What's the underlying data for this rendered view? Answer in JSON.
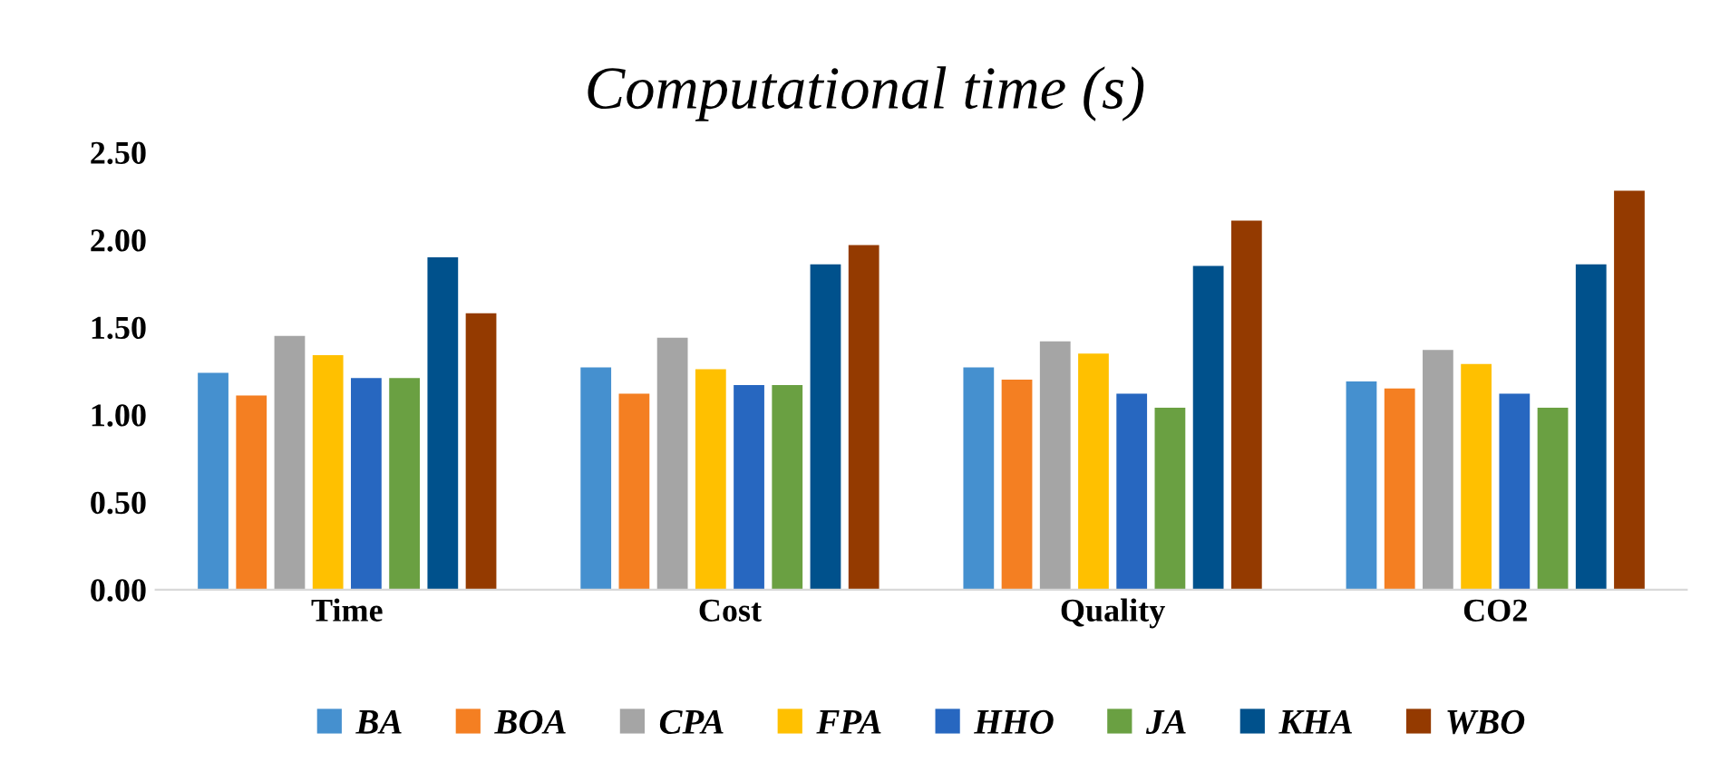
{
  "chart_data": {
    "type": "bar",
    "title": "Computational time (s)",
    "categories": [
      "Time",
      "Cost",
      "Quality",
      "CO2"
    ],
    "series": [
      {
        "name": "BA",
        "color": "#4590cf",
        "values": [
          1.24,
          1.27,
          1.27,
          1.19
        ]
      },
      {
        "name": "BOA",
        "color": "#f47f22",
        "values": [
          1.11,
          1.12,
          1.2,
          1.15
        ]
      },
      {
        "name": "CPA",
        "color": "#a5a5a5",
        "values": [
          1.45,
          1.44,
          1.42,
          1.37
        ]
      },
      {
        "name": "FPA",
        "color": "#ffc000",
        "values": [
          1.34,
          1.26,
          1.35,
          1.29
        ]
      },
      {
        "name": "HHO",
        "color": "#2767c0",
        "values": [
          1.21,
          1.17,
          1.12,
          1.12
        ]
      },
      {
        "name": "JA",
        "color": "#6aa042",
        "values": [
          1.21,
          1.17,
          1.04,
          1.04
        ]
      },
      {
        "name": "KHA",
        "color": "#00518c",
        "values": [
          1.9,
          1.86,
          1.85,
          1.86
        ]
      },
      {
        "name": "WBO",
        "color": "#943a00",
        "values": [
          1.58,
          1.97,
          2.11,
          2.28
        ]
      }
    ],
    "ylim": [
      0,
      2.5
    ],
    "yticks": [
      {
        "value": 0,
        "label": "0.00"
      },
      {
        "value": 0.5,
        "label": "0.50"
      },
      {
        "value": 1,
        "label": "1.00"
      },
      {
        "value": 1.5,
        "label": "1.50"
      },
      {
        "value": 2,
        "label": "2.00"
      },
      {
        "value": 2.5,
        "label": "2.50"
      }
    ],
    "grid": false,
    "legend": "bottom"
  }
}
